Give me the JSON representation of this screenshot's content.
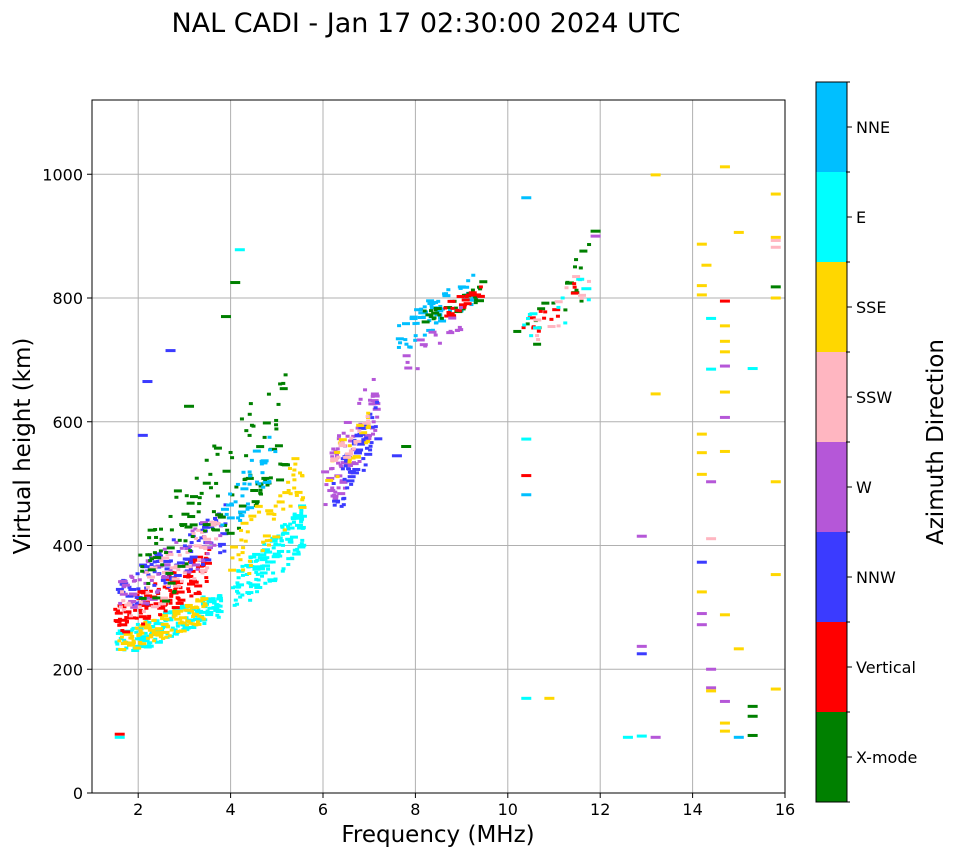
{
  "chart_data": {
    "type": "scatter",
    "title": "NAL CADI - Jan 17 02:30:00 2024 UTC",
    "xlabel": "Frequency (MHz)",
    "ylabel": "Virtual height (km)",
    "xlim": [
      1,
      16
    ],
    "ylim": [
      0,
      1120
    ],
    "xticks": [
      2,
      4,
      6,
      8,
      10,
      12,
      14,
      16
    ],
    "yticks": [
      0,
      200,
      400,
      600,
      800,
      1000
    ],
    "grid": true,
    "colorbar": {
      "label": "Azimuth Direction",
      "categories": [
        {
          "name": "X-mode",
          "color": "#008000"
        },
        {
          "name": "Vertical",
          "color": "#ff0000"
        },
        {
          "name": "NNW",
          "color": "#3b3bff"
        },
        {
          "name": "W",
          "color": "#b557d8"
        },
        {
          "name": "SSW",
          "color": "#ffb6c1"
        },
        {
          "name": "SSE",
          "color": "#ffd700"
        },
        {
          "name": "E",
          "color": "#00ffff"
        },
        {
          "name": "NNE",
          "color": "#00bfff"
        }
      ]
    },
    "clusters": [
      {
        "name": "E",
        "f": [
          1.5,
          3.8
        ],
        "h": [
          230,
          330
        ],
        "n": 170
      },
      {
        "name": "SSE",
        "f": [
          1.5,
          3.5
        ],
        "h": [
          230,
          320
        ],
        "n": 110
      },
      {
        "name": "Vertical",
        "f": [
          1.5,
          3.6
        ],
        "h": [
          260,
          400
        ],
        "n": 130
      },
      {
        "name": "NNW",
        "f": [
          1.6,
          3.9
        ],
        "h": [
          300,
          470
        ],
        "n": 100
      },
      {
        "name": "W",
        "f": [
          1.6,
          3.8
        ],
        "h": [
          300,
          460
        ],
        "n": 70
      },
      {
        "name": "SSW",
        "f": [
          1.6,
          3.8
        ],
        "h": [
          280,
          460
        ],
        "n": 55
      },
      {
        "name": "X-mode",
        "f": [
          2.0,
          5.2
        ],
        "h": [
          300,
          700
        ],
        "n": 130
      },
      {
        "name": "E",
        "f": [
          4.0,
          5.6
        ],
        "h": [
          300,
          470
        ],
        "n": 140
      },
      {
        "name": "SSE",
        "f": [
          4.0,
          5.6
        ],
        "h": [
          350,
          560
        ],
        "n": 60
      },
      {
        "name": "NNE",
        "f": [
          3.8,
          5.0
        ],
        "h": [
          420,
          600
        ],
        "n": 40
      },
      {
        "name": "W",
        "f": [
          6.0,
          7.2
        ],
        "h": [
          460,
          700
        ],
        "n": 80
      },
      {
        "name": "NNW",
        "f": [
          6.2,
          7.2
        ],
        "h": [
          460,
          640
        ],
        "n": 60
      },
      {
        "name": "SSE",
        "f": [
          6.0,
          7.0
        ],
        "h": [
          500,
          620
        ],
        "n": 25
      },
      {
        "name": "SSW",
        "f": [
          6.2,
          7.0
        ],
        "h": [
          520,
          620
        ],
        "n": 20
      },
      {
        "name": "NNE",
        "f": [
          7.6,
          9.3
        ],
        "h": [
          720,
          850
        ],
        "n": 70
      },
      {
        "name": "X-mode",
        "f": [
          8.2,
          9.5
        ],
        "h": [
          760,
          830
        ],
        "n": 30
      },
      {
        "name": "Vertical",
        "f": [
          8.6,
          9.5
        ],
        "h": [
          770,
          830
        ],
        "n": 20
      },
      {
        "name": "W",
        "f": [
          7.8,
          9.0
        ],
        "h": [
          680,
          790
        ],
        "n": 20
      },
      {
        "name": "X-mode",
        "f": [
          10.2,
          12.0
        ],
        "h": [
          720,
          910
        ],
        "n": 20
      },
      {
        "name": "Vertical",
        "f": [
          10.3,
          11.5
        ],
        "h": [
          730,
          850
        ],
        "n": 15
      },
      {
        "name": "E",
        "f": [
          10.2,
          11.8
        ],
        "h": [
          720,
          850
        ],
        "n": 12
      },
      {
        "name": "SSW",
        "f": [
          10.6,
          11.8
        ],
        "h": [
          730,
          860
        ],
        "n": 12
      }
    ],
    "points": [
      {
        "f": 10.4,
        "h": 962,
        "name": "NNE"
      },
      {
        "f": 10.4,
        "h": 572,
        "name": "E"
      },
      {
        "f": 10.4,
        "h": 513,
        "name": "Vertical"
      },
      {
        "f": 10.4,
        "h": 482,
        "name": "NNE"
      },
      {
        "f": 10.4,
        "h": 153,
        "name": "E"
      },
      {
        "f": 10.9,
        "h": 153,
        "name": "SSE"
      },
      {
        "f": 12.9,
        "h": 415,
        "name": "W"
      },
      {
        "f": 13.2,
        "h": 645,
        "name": "SSE"
      },
      {
        "f": 13.2,
        "h": 999,
        "name": "SSE"
      },
      {
        "f": 12.9,
        "h": 237,
        "name": "W"
      },
      {
        "f": 12.9,
        "h": 225,
        "name": "NNW"
      },
      {
        "f": 12.6,
        "h": 90,
        "name": "E"
      },
      {
        "f": 12.9,
        "h": 92,
        "name": "E"
      },
      {
        "f": 13.2,
        "h": 90,
        "name": "W"
      },
      {
        "f": 14.2,
        "h": 887,
        "name": "SSE"
      },
      {
        "f": 14.3,
        "h": 853,
        "name": "SSE"
      },
      {
        "f": 14.2,
        "h": 820,
        "name": "SSE"
      },
      {
        "f": 14.2,
        "h": 805,
        "name": "SSE"
      },
      {
        "f": 14.2,
        "h": 580,
        "name": "SSE"
      },
      {
        "f": 14.2,
        "h": 550,
        "name": "SSE"
      },
      {
        "f": 14.2,
        "h": 515,
        "name": "SSE"
      },
      {
        "f": 14.2,
        "h": 373,
        "name": "NNW"
      },
      {
        "f": 14.2,
        "h": 325,
        "name": "SSE"
      },
      {
        "f": 14.2,
        "h": 290,
        "name": "W"
      },
      {
        "f": 14.2,
        "h": 272,
        "name": "W"
      },
      {
        "f": 14.4,
        "h": 767,
        "name": "E"
      },
      {
        "f": 14.4,
        "h": 685,
        "name": "E"
      },
      {
        "f": 14.4,
        "h": 503,
        "name": "W"
      },
      {
        "f": 14.4,
        "h": 411,
        "name": "SSW"
      },
      {
        "f": 14.4,
        "h": 200,
        "name": "W"
      },
      {
        "f": 14.4,
        "h": 170,
        "name": "W"
      },
      {
        "f": 14.4,
        "h": 165,
        "name": "SSE"
      },
      {
        "f": 14.7,
        "h": 1012,
        "name": "SSE"
      },
      {
        "f": 14.7,
        "h": 795,
        "name": "Vertical"
      },
      {
        "f": 14.7,
        "h": 755,
        "name": "SSE"
      },
      {
        "f": 14.7,
        "h": 730,
        "name": "SSE"
      },
      {
        "f": 14.7,
        "h": 713,
        "name": "SSE"
      },
      {
        "f": 14.7,
        "h": 690,
        "name": "W"
      },
      {
        "f": 14.7,
        "h": 648,
        "name": "SSE"
      },
      {
        "f": 14.7,
        "h": 607,
        "name": "W"
      },
      {
        "f": 14.7,
        "h": 552,
        "name": "SSE"
      },
      {
        "f": 14.7,
        "h": 288,
        "name": "SSE"
      },
      {
        "f": 14.7,
        "h": 148,
        "name": "W"
      },
      {
        "f": 14.7,
        "h": 113,
        "name": "SSE"
      },
      {
        "f": 14.7,
        "h": 100,
        "name": "SSE"
      },
      {
        "f": 15.0,
        "h": 906,
        "name": "SSE"
      },
      {
        "f": 15.0,
        "h": 233,
        "name": "SSE"
      },
      {
        "f": 15.0,
        "h": 90,
        "name": "NNE"
      },
      {
        "f": 15.3,
        "h": 686,
        "name": "E"
      },
      {
        "f": 15.3,
        "h": 140,
        "name": "X-mode"
      },
      {
        "f": 15.3,
        "h": 124,
        "name": "X-mode"
      },
      {
        "f": 15.3,
        "h": 93,
        "name": "X-mode"
      },
      {
        "f": 15.8,
        "h": 968,
        "name": "SSE"
      },
      {
        "f": 15.8,
        "h": 898,
        "name": "SSE"
      },
      {
        "f": 15.8,
        "h": 893,
        "name": "SSW"
      },
      {
        "f": 15.8,
        "h": 882,
        "name": "SSW"
      },
      {
        "f": 15.8,
        "h": 818,
        "name": "X-mode"
      },
      {
        "f": 15.8,
        "h": 800,
        "name": "SSE"
      },
      {
        "f": 15.8,
        "h": 503,
        "name": "SSE"
      },
      {
        "f": 15.8,
        "h": 353,
        "name": "SSE"
      },
      {
        "f": 15.8,
        "h": 168,
        "name": "SSE"
      },
      {
        "f": 1.6,
        "h": 95,
        "name": "Vertical"
      },
      {
        "f": 1.6,
        "h": 90,
        "name": "E"
      },
      {
        "f": 4.2,
        "h": 878,
        "name": "E"
      },
      {
        "f": 4.1,
        "h": 825,
        "name": "X-mode"
      },
      {
        "f": 7.8,
        "h": 560,
        "name": "X-mode"
      },
      {
        "f": 7.6,
        "h": 545,
        "name": "NNW"
      },
      {
        "f": 2.2,
        "h": 665,
        "name": "NNW"
      },
      {
        "f": 2.1,
        "h": 578,
        "name": "NNW"
      },
      {
        "f": 2.7,
        "h": 715,
        "name": "NNW"
      },
      {
        "f": 3.1,
        "h": 625,
        "name": "X-mode"
      },
      {
        "f": 3.9,
        "h": 770,
        "name": "X-mode"
      },
      {
        "f": 11.9,
        "h": 908,
        "name": "X-mode"
      },
      {
        "f": 11.9,
        "h": 900,
        "name": "W"
      },
      {
        "f": 11.7,
        "h": 815,
        "name": "E"
      }
    ]
  }
}
